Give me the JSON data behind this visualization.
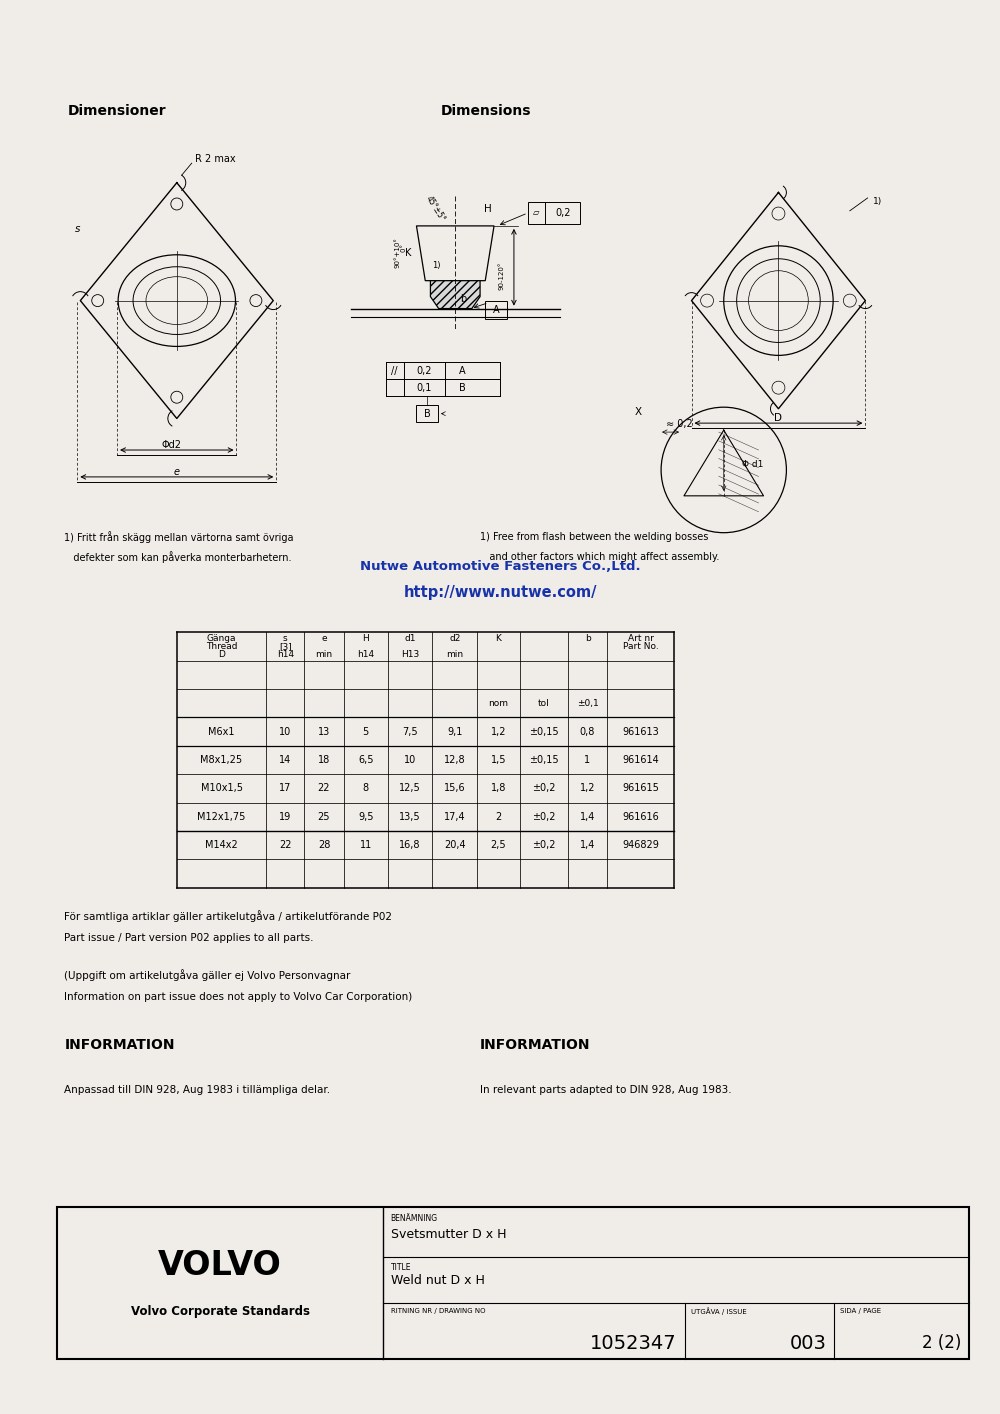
{
  "page_bg": "#f0ede8",
  "title_dimensioner": "Dimensioner",
  "title_dimensions": "Dimensions",
  "watermark_line1": "Nutwe Automotive Fasteners Co.,Ltd.",
  "watermark_line2": "http://www.nutwe.com/",
  "table_data": [
    [
      "M6x1",
      "10",
      "13",
      "5",
      "7,5",
      "9,1",
      "1,2",
      "±0,15",
      "0,8",
      "961613"
    ],
    [
      "M8x1,25",
      "14",
      "18",
      "6,5",
      "10",
      "12,8",
      "1,5",
      "±0,15",
      "1",
      "961614"
    ],
    [
      "M10x1,5",
      "17",
      "22",
      "8",
      "12,5",
      "15,6",
      "1,8",
      "±0,2",
      "1,2",
      "961615"
    ],
    [
      "M12x1,75",
      "19",
      "25",
      "9,5",
      "13,5",
      "17,4",
      "2",
      "±0,2",
      "1,4",
      "961616"
    ],
    [
      "M14x2",
      "22",
      "28",
      "11",
      "16,8",
      "20,4",
      "2,5",
      "±0,2",
      "1,4",
      "946829"
    ]
  ],
  "volvo_text": "VOLVO",
  "volvo_sub": "Volvo Corporate Standards",
  "benamning_label": "BENÄMNING",
  "benamning_val": "Svetsmutter D x H",
  "title_label": "TITLE",
  "title_val": "Weld nut D x H",
  "drawing_no_label": "RITNING NR / DRAWING NO",
  "drawing_no_val": "1052347",
  "issue_label": "UTGÅVA / ISSUE",
  "issue_val": "003",
  "page_label": "SIDA / PAGE",
  "page_val": "2 (2)",
  "parts_sv_1": "För samtliga artiklar gäller artikelutgåva / artikelutförande P02",
  "parts_sv_2": "Part issue / Part version P02 applies to all parts.",
  "parts2_sv_1": "(Uppgift om artikelutgåva gäller ej Volvo Personvagnar",
  "parts2_sv_2": "Information on part issue does not apply to Volvo Car Corporation)",
  "info_header_sv": "INFORMATION",
  "info_header_en": "INFORMATION",
  "info_sv": "Anpassad till DIN 928, Aug 1983 i tillämpliga delar.",
  "info_en": "In relevant parts adapted to DIN 928, Aug 1983.",
  "note1_sv_1": "1) Fritt från skägg mellan värtorna samt övriga",
  "note1_sv_2": "   defekter som kan påverka monterbarhetern.",
  "note1_en_1": "1) Free from flash between the welding bosses",
  "note1_en_2": "   and other factors which might affect assembly."
}
